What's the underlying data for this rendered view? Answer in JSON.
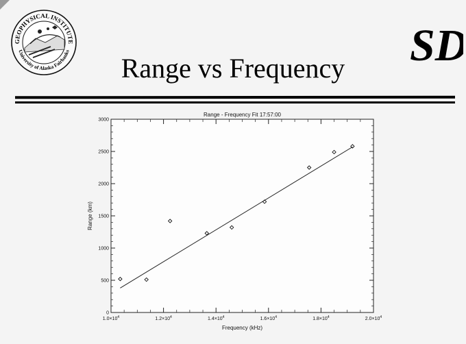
{
  "slide": {
    "title": "Range vs Frequency",
    "logo_left_text_top": "GEOPHYSICAL INSTITUTE",
    "logo_left_text_bottom": "University of Alaska Fairbanks",
    "logo_right_text": "SD"
  },
  "chart_data": {
    "type": "scatter",
    "title": "Range - Frequency Fit   17:57:00",
    "xlabel": "Frequency (kHz)",
    "ylabel": "Range (km)",
    "xlim": [
      10000,
      20000
    ],
    "ylim": [
      0,
      3000
    ],
    "xticks": [
      10000,
      12000,
      14000,
      16000,
      18000,
      20000
    ],
    "xtick_labels": [
      {
        "base": "1.0×10",
        "exp": "4"
      },
      {
        "base": "1.2×10",
        "exp": "4"
      },
      {
        "base": "1.4×10",
        "exp": "4"
      },
      {
        "base": "1.6×10",
        "exp": "4"
      },
      {
        "base": "1.8×10",
        "exp": "4"
      },
      {
        "base": "2.0×10",
        "exp": "4"
      }
    ],
    "yticks": [
      0,
      500,
      1000,
      1500,
      2000,
      2500,
      3000
    ],
    "ytick_labels": [
      "0",
      "500",
      "1000",
      "1500",
      "2000",
      "2500",
      "3000"
    ],
    "grid": false,
    "series": [
      {
        "marker": "diamond",
        "points": [
          {
            "x": 10350,
            "y": 520
          },
          {
            "x": 11350,
            "y": 510
          },
          {
            "x": 12250,
            "y": 1420
          },
          {
            "x": 13650,
            "y": 1230
          },
          {
            "x": 14600,
            "y": 1320
          },
          {
            "x": 15850,
            "y": 1720
          },
          {
            "x": 17550,
            "y": 2250
          },
          {
            "x": 18500,
            "y": 2490
          },
          {
            "x": 19200,
            "y": 2580
          }
        ]
      }
    ],
    "fit_line": {
      "x": [
        10350,
        19200
      ],
      "y": [
        380,
        2570
      ]
    }
  }
}
